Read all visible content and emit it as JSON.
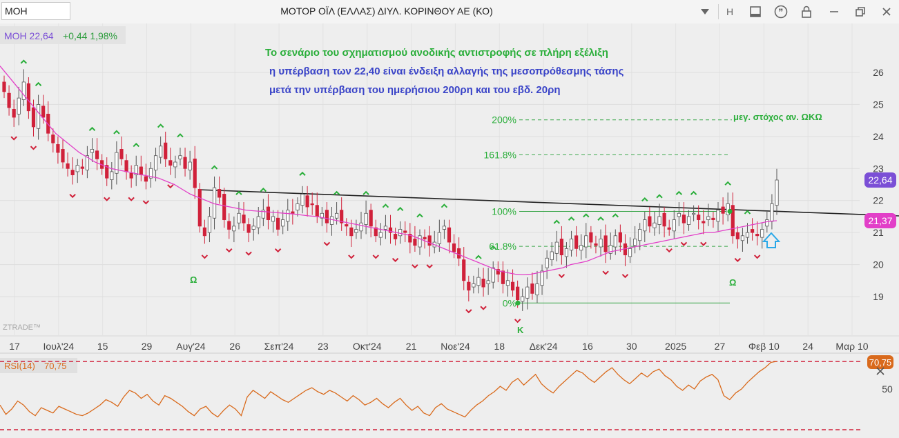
{
  "toolbar": {
    "symbol": "MOH",
    "title": "ΜΟΤΟΡ ΟΪΛ (ΕΛΛΑΣ) ΔΙΥΛ. ΚΟΡΙΝΘΟΥ ΑΕ (ΚΟ)",
    "timeframe": "H",
    "icons": [
      "dropdown-icon",
      "layout-icon",
      "quote-icon",
      "lock-icon",
      "minimize-icon",
      "restore-icon",
      "close-icon"
    ]
  },
  "chart_data": [
    {
      "type": "candlestick",
      "header": {
        "symbol_price": "MOH 22,64",
        "change": "+0,44 1,98%"
      },
      "annotations": [
        "Το σενάριο του σχηματισμού ανοδικής αντιστροφής σε πλήρη εξέλιξη",
        "η υπέρβαση των 22,40 είναι ένδειξη αλλαγής της μεσοπρόθεσμης τάσης",
        "μετά την υπέρβαση του ημερήσιου 200ρη και του εβδ. 20ρη"
      ],
      "target_label": "μεγ. στόχος αν. ΩΚΩ",
      "pattern_labels": [
        "Ω",
        "Κ",
        "Ω"
      ],
      "watermark": "ZTRADE™",
      "yaxis": {
        "ticks": [
          19,
          20,
          21,
          22,
          23,
          24,
          25,
          26
        ],
        "range": [
          18.0,
          27.0
        ]
      },
      "xaxis": {
        "ticks": [
          "17",
          "Ιουλ'24",
          "15",
          "29",
          "Αυγ'24",
          "26",
          "Σεπ'24",
          "23",
          "Οκτ'24",
          "21",
          "Νοε'24",
          "18",
          "Δεκ'24",
          "16",
          "30",
          "2025",
          "27",
          "Φεβ 10",
          "24",
          "Μαρ 10"
        ]
      },
      "fibonacci": [
        {
          "label": "0%",
          "value": 18.8
        },
        {
          "label": "61.8%",
          "value": 20.57
        },
        {
          "label": "100%",
          "value": 21.66
        },
        {
          "label": "161.8%",
          "value": 23.43
        },
        {
          "label": "200%",
          "value": 24.52
        }
      ],
      "price_tags": [
        {
          "label": "22,64",
          "value": 22.64,
          "color": "#7b4fd6"
        },
        {
          "label": "21,37",
          "value": 21.37,
          "color": "#e23fc8"
        }
      ],
      "closes": [
        25.4,
        24.9,
        24.6,
        25.2,
        25.7,
        24.8,
        24.3,
        25.0,
        24.6,
        24.1,
        23.8,
        23.5,
        23.2,
        23.0,
        22.8,
        23.1,
        23.0,
        23.4,
        23.6,
        23.3,
        23.0,
        22.7,
        22.9,
        23.5,
        23.3,
        22.9,
        22.7,
        23.1,
        22.8,
        22.6,
        23.0,
        23.4,
        23.7,
        23.3,
        23.1,
        23.2,
        23.4,
        23.0,
        23.2,
        22.4,
        21.2,
        20.9,
        21.5,
        22.4,
        22.1,
        21.4,
        21.1,
        21.2,
        21.6,
        21.3,
        21.0,
        21.2,
        21.5,
        21.7,
        21.4,
        21.5,
        21.1,
        21.4,
        21.7,
        21.6,
        21.9,
        22.2,
        21.8,
        21.9,
        21.5,
        21.6,
        21.3,
        21.5,
        21.6,
        21.3,
        21.2,
        20.9,
        21.1,
        21.3,
        21.6,
        21.2,
        20.9,
        21.0,
        21.2,
        21.0,
        20.8,
        21.1,
        21.0,
        20.7,
        20.6,
        20.9,
        20.8,
        20.6,
        20.7,
        21.0,
        21.2,
        20.7,
        20.4,
        20.2,
        19.5,
        19.2,
        19.4,
        19.6,
        19.3,
        19.5,
        19.9,
        19.7,
        19.4,
        19.5,
        19.2,
        18.9,
        19.0,
        19.3,
        19.1,
        19.4,
        19.8,
        20.2,
        20.4,
        20.7,
        20.3,
        20.5,
        20.8,
        20.5,
        20.6,
        20.9,
        20.7,
        20.6,
        20.8,
        20.4,
        20.6,
        20.9,
        20.7,
        20.3,
        20.5,
        20.8,
        21.1,
        21.4,
        21.2,
        21.3,
        21.5,
        21.2,
        21.1,
        21.4,
        21.6,
        21.3,
        21.5,
        21.6,
        21.4,
        21.3,
        21.5,
        21.4,
        21.7,
        21.6,
        21.9,
        20.9,
        20.8,
        20.9,
        21.0,
        21.0,
        20.9,
        21.1,
        21.4,
        21.9,
        22.64
      ],
      "ma": [
        26.2,
        25.9,
        25.6,
        25.3,
        25.0,
        24.7,
        24.4,
        24.1,
        23.9,
        23.7,
        23.5,
        23.35,
        23.2,
        23.1,
        23.0,
        22.95,
        22.9,
        22.85,
        22.8,
        22.75,
        22.7,
        22.6,
        22.5,
        22.35,
        22.2,
        22.1,
        22.0,
        21.9,
        21.85,
        21.8,
        21.75,
        21.7,
        21.68,
        21.66,
        21.64,
        21.62,
        21.6,
        21.58,
        21.55,
        21.52,
        21.5,
        21.45,
        21.4,
        21.35,
        21.3,
        21.25,
        21.2,
        21.15,
        21.1,
        21.05,
        21.0,
        20.95,
        20.9,
        20.8,
        20.7,
        20.6,
        20.5,
        20.4,
        20.3,
        20.2,
        20.1,
        20.0,
        19.9,
        19.8,
        19.75,
        19.7,
        19.68,
        19.7,
        19.75,
        19.8,
        19.85,
        19.9,
        20.0,
        20.05,
        20.1,
        20.2,
        20.3,
        20.4,
        20.45,
        20.5,
        20.55,
        20.6,
        20.65,
        20.7,
        20.75,
        20.8,
        20.85,
        20.9,
        20.95,
        21.0,
        21.0,
        21.05,
        21.1,
        21.15,
        21.2,
        21.25,
        21.3,
        21.35,
        21.37
      ],
      "ma_color": "#e23fc8"
    },
    {
      "type": "line",
      "name": "RSI(14)",
      "value_label": "70,75",
      "ticks": [
        50
      ],
      "range": [
        25,
        75
      ],
      "levels": [
        70,
        30
      ],
      "values": [
        38,
        31,
        35,
        41,
        38,
        33,
        30,
        36,
        34,
        32,
        37,
        35,
        33,
        31,
        30,
        32,
        35,
        38,
        42,
        40,
        37,
        44,
        49,
        47,
        43,
        46,
        41,
        38,
        45,
        43,
        40,
        37,
        33,
        30,
        35,
        37,
        32,
        29,
        34,
        38,
        35,
        30,
        44,
        49,
        46,
        43,
        48,
        45,
        42,
        40,
        43,
        46,
        49,
        51,
        48,
        46,
        49,
        47,
        44,
        41,
        45,
        42,
        38,
        40,
        43,
        39,
        36,
        40,
        43,
        38,
        34,
        37,
        32,
        30,
        36,
        39,
        35,
        33,
        31,
        29,
        34,
        38,
        41,
        45,
        48,
        52,
        49,
        55,
        58,
        53,
        57,
        61,
        54,
        50,
        47,
        52,
        56,
        60,
        64,
        62,
        58,
        55,
        59,
        63,
        66,
        61,
        57,
        54,
        58,
        62,
        59,
        63,
        65,
        60,
        57,
        52,
        49,
        53,
        50,
        56,
        59,
        61,
        57,
        45,
        42,
        47,
        50,
        55,
        59,
        63,
        66,
        70,
        70.75
      ],
      "color": "#d96a1c"
    }
  ]
}
